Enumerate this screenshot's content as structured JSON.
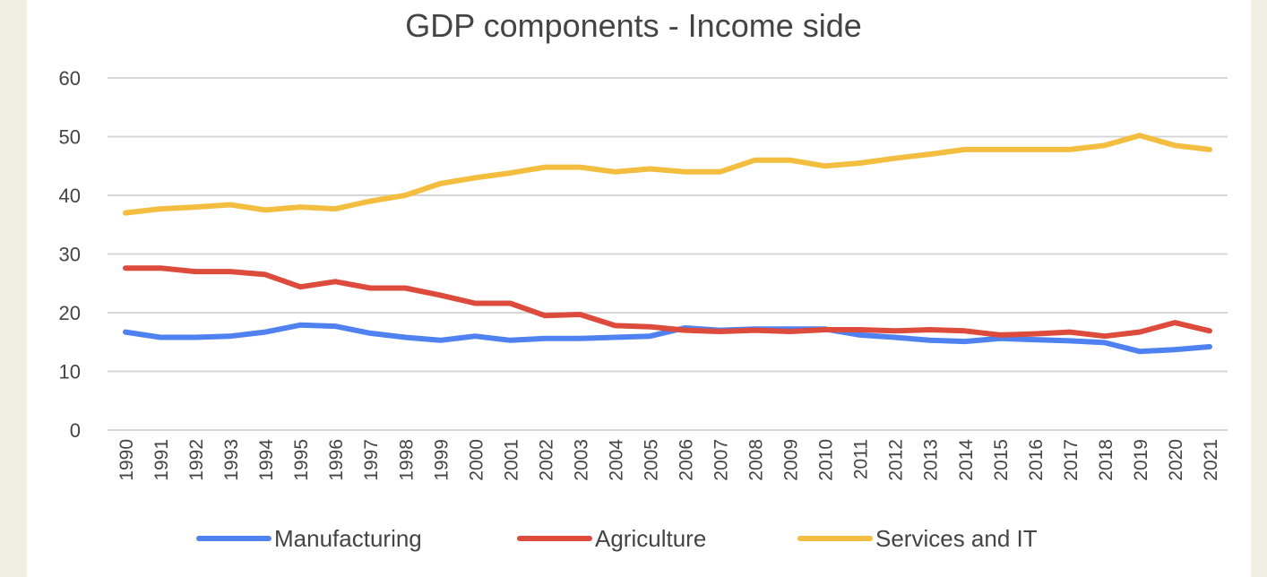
{
  "chart_data": {
    "type": "line",
    "title": "GDP components - Income side",
    "xlabel": "",
    "ylabel": "",
    "ylim": [
      0,
      60
    ],
    "yticks": [
      0,
      10,
      20,
      30,
      40,
      50,
      60
    ],
    "grid": true,
    "legend": "bottom",
    "x": [
      "1990",
      "1991",
      "1992",
      "1993",
      "1994",
      "1995",
      "1996",
      "1997",
      "1998",
      "1999",
      "2000",
      "2001",
      "2002",
      "2003",
      "2004",
      "2005",
      "2006",
      "2007",
      "2008",
      "2009",
      "2010",
      "2011",
      "2012",
      "2013",
      "2014",
      "2015",
      "2016",
      "2017",
      "2018",
      "2019",
      "2020",
      "2021"
    ],
    "series": [
      {
        "name": "Manufacturing",
        "color": "#4f82f0",
        "values": [
          16.7,
          15.8,
          15.8,
          16,
          16.7,
          17.9,
          17.7,
          16.5,
          15.8,
          15.3,
          16,
          15.3,
          15.6,
          15.6,
          15.8,
          16,
          17.4,
          17,
          17.2,
          17.2,
          17.2,
          16.2,
          15.8,
          15.3,
          15.1,
          15.6,
          15.4,
          15.2,
          14.9,
          13.4,
          13.7,
          14.2
        ]
      },
      {
        "name": "Agriculture",
        "color": "#dc4b3c",
        "values": [
          27.6,
          27.6,
          27,
          27,
          26.5,
          24.4,
          25.3,
          24.2,
          24.2,
          23,
          21.6,
          21.6,
          19.5,
          19.7,
          17.8,
          17.6,
          17,
          16.8,
          17,
          16.8,
          17.1,
          17.1,
          16.9,
          17.1,
          16.9,
          16.2,
          16.4,
          16.7,
          16,
          16.7,
          18.3,
          16.9
        ]
      },
      {
        "name": "Services and IT",
        "color": "#f3bd3f",
        "values": [
          37,
          37.7,
          38,
          38.4,
          37.5,
          38,
          37.7,
          39,
          40,
          42,
          43,
          43.8,
          44.8,
          44.8,
          44,
          44.5,
          44,
          44,
          46,
          46,
          45,
          45.5,
          46.3,
          47,
          47.8,
          47.8,
          47.8,
          47.8,
          48.5,
          50.2,
          48.5,
          47.8
        ]
      }
    ]
  }
}
